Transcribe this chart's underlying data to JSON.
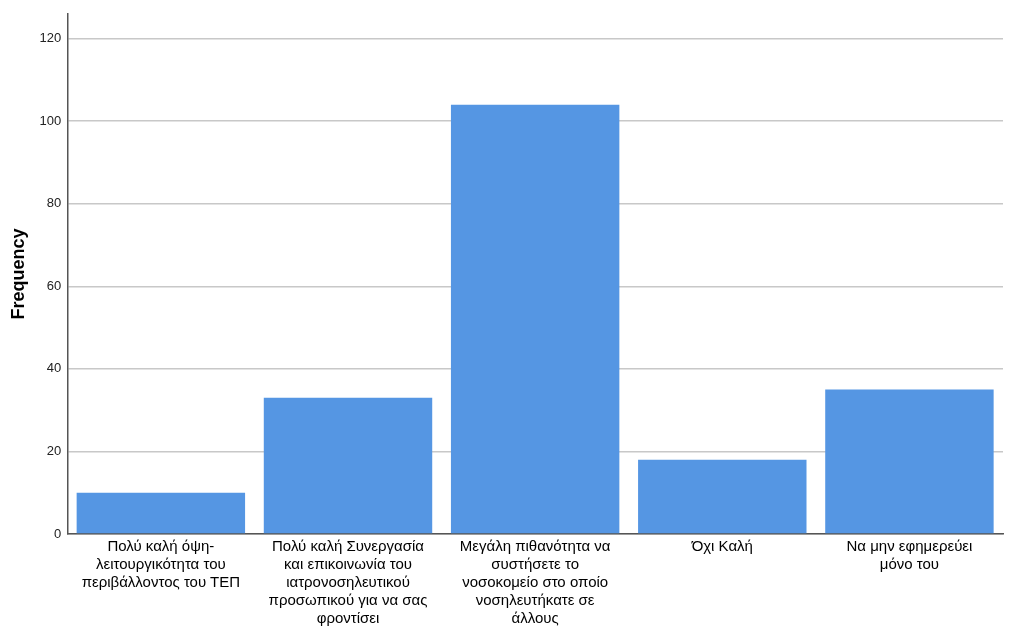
{
  "chart_data": {
    "type": "bar",
    "ylabel": "Frequency",
    "categories": [
      "Πολύ καλή όψη-λειτουργικότητα του περιβάλλοντος του ΤΕΠ",
      "Πολύ καλή Συνεργασία και επικοινωνία του ιατρονοσηλευτικού προσωπικού για να σας φροντίσει",
      "Μεγάλη πιθανότητα να συστήσετε το νοσοκομείο στο οποίο νοσηλευτήκατε σε άλλους",
      "Όχι Καλή",
      "Να μην εφημερεύει μόνο του"
    ],
    "values": [
      10,
      33,
      104,
      18,
      35
    ],
    "color": "#5596e3",
    "ylim": [
      0,
      126
    ],
    "yticks": [
      0,
      20,
      40,
      60,
      80,
      100,
      120
    ],
    "grid": "y"
  }
}
